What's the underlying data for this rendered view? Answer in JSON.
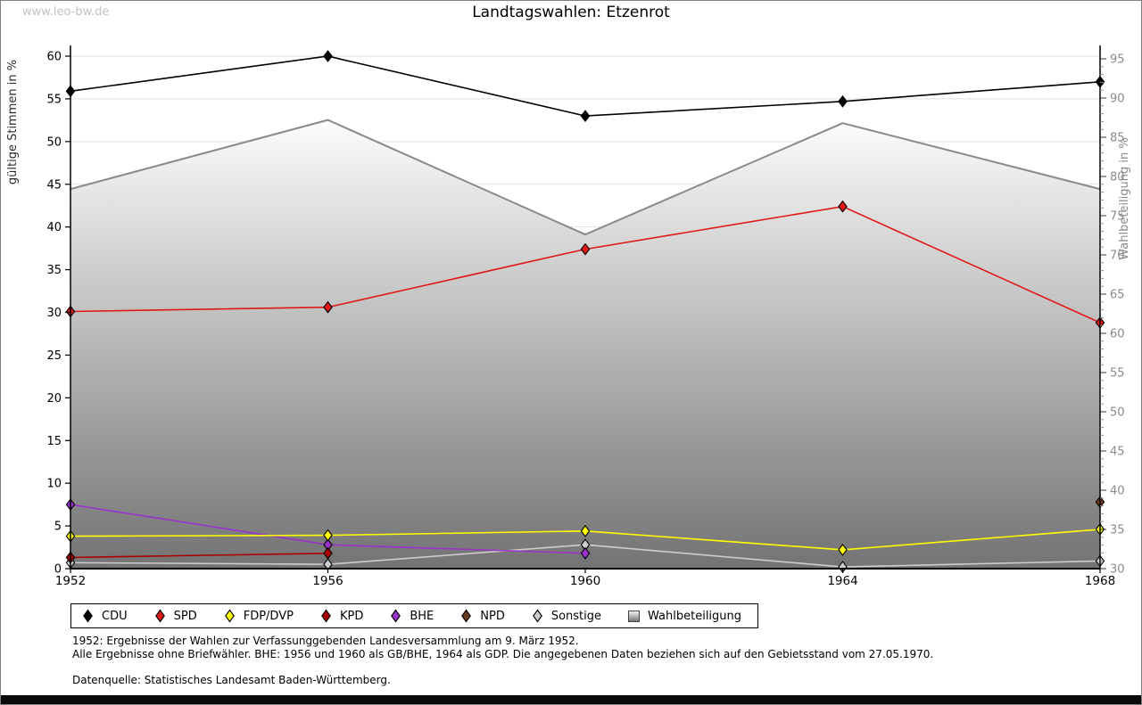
{
  "page": {
    "watermark": "www.leo-bw.de",
    "title": "Landtagswahlen: Etzenrot",
    "footnotes": {
      "line1": "1952: Ergebnisse der Wahlen zur Verfassunggebenden Landesversammlung am 9. März 1952.",
      "line2": "Alle Ergebnisse ohne Briefwähler. BHE: 1956 und 1960 als GB/BHE, 1964 als GDP. Die angegebenen Daten beziehen sich auf den Gebietsstand vom 27.05.1970.",
      "source": "Datenquelle: Statistisches Landesamt Baden-Württemberg."
    }
  },
  "chart_data": {
    "type": "line",
    "title": "Landtagswahlen: Etzenrot",
    "x": [
      1952,
      1956,
      1960,
      1964,
      1968
    ],
    "x_tick_labels": [
      "1952",
      "1956",
      "1960",
      "1964",
      "1968"
    ],
    "left_axis": {
      "label": "gültige Stimmen in %",
      "min": 0,
      "max": 60,
      "ticks": [
        0,
        5,
        10,
        15,
        20,
        25,
        30,
        35,
        40,
        45,
        50,
        55,
        60
      ]
    },
    "right_axis": {
      "label": "Wahlbeteiligung in %",
      "min": 30,
      "max": 95,
      "ticks": [
        30,
        35,
        40,
        45,
        50,
        55,
        60,
        65,
        70,
        75,
        80,
        85,
        90,
        95
      ],
      "minor_tick_step": 1
    },
    "grid": "horizontal gridlines every 5 (left axis)",
    "legend_position": "bottom-left",
    "series": [
      {
        "name": "CDU",
        "type": "line",
        "axis": "left",
        "color": "#000000",
        "values": [
          55.9,
          60.0,
          53.0,
          54.7,
          57.0
        ]
      },
      {
        "name": "SPD",
        "type": "line",
        "axis": "left",
        "color": "#e01818",
        "values": [
          30.1,
          30.6,
          37.4,
          42.4,
          28.8
        ]
      },
      {
        "name": "FDP/DVP",
        "type": "line",
        "axis": "left",
        "color": "#ffff00",
        "values": [
          3.8,
          3.9,
          4.4,
          2.2,
          4.6
        ]
      },
      {
        "name": "KPD",
        "type": "line",
        "axis": "left",
        "color": "#aa0000",
        "values": [
          1.3,
          1.8,
          null,
          null,
          null
        ]
      },
      {
        "name": "BHE",
        "type": "line",
        "axis": "left",
        "color": "#9933cc",
        "values": [
          7.5,
          2.8,
          1.8,
          null,
          null
        ]
      },
      {
        "name": "NPD",
        "type": "line",
        "axis": "left",
        "color": "#6e3a1f",
        "values": [
          null,
          null,
          null,
          null,
          7.8
        ]
      },
      {
        "name": "Sonstige",
        "type": "line",
        "axis": "left",
        "color": "#cccccc",
        "values": [
          0.7,
          0.5,
          2.8,
          0.2,
          0.9
        ]
      },
      {
        "name": "Wahlbeteiligung",
        "type": "area",
        "axis": "right",
        "color": "#8a8a8a",
        "fill": "gray-gradient",
        "values": [
          78.4,
          87.2,
          72.6,
          86.8,
          78.4
        ]
      }
    ]
  }
}
